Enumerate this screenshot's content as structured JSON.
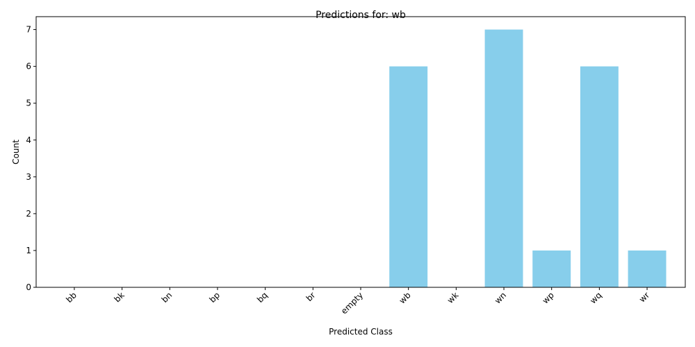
{
  "chart_data": {
    "type": "bar",
    "title": "Predictions for: wb",
    "xlabel": "Predicted Class",
    "ylabel": "Count",
    "categories": [
      "bb",
      "bk",
      "bn",
      "bp",
      "bq",
      "br",
      "empty",
      "wb",
      "wk",
      "wn",
      "wp",
      "wq",
      "wr"
    ],
    "values": [
      0,
      0,
      0,
      0,
      0,
      0,
      0,
      6,
      0,
      7,
      1,
      6,
      1
    ],
    "ylim": [
      0,
      7.35
    ],
    "yticks": [
      0,
      1,
      2,
      3,
      4,
      5,
      6,
      7
    ],
    "bar_color": "#87CEEB",
    "grid": false,
    "xtick_rotation": 45
  }
}
